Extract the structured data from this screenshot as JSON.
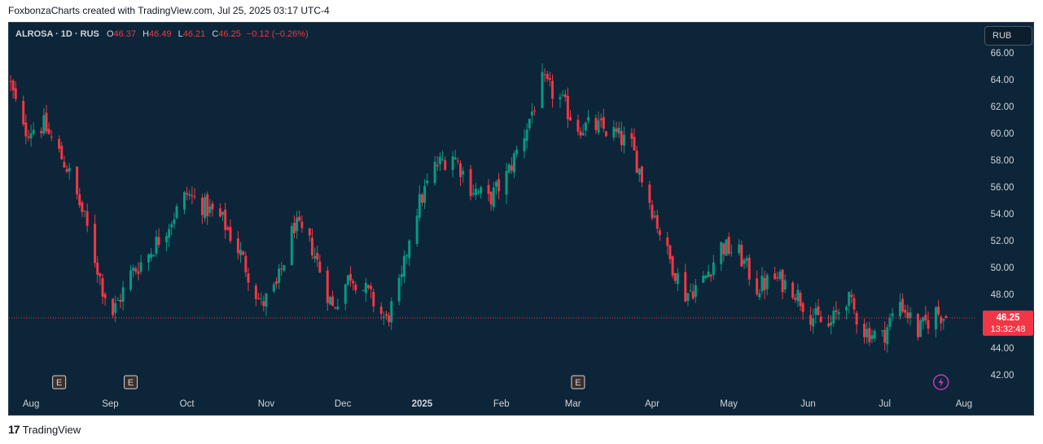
{
  "header": {
    "caption": "FoxbonzaCharts created with TradingView.com, Jul 25, 2025 03:17 UTC-4"
  },
  "legend": {
    "symbol": "ALROSA · 1D · RUS",
    "o_label": "O",
    "o_value": "46.37",
    "h_label": "H",
    "h_value": "46.49",
    "l_label": "L",
    "l_value": "46.21",
    "c_label": "C",
    "c_value": "46.25",
    "change": "−0.12 (−0.26%)"
  },
  "currency_button": "RUB",
  "price_badge": {
    "price": "46.25",
    "countdown": "13:32:48"
  },
  "footer": {
    "logo_text": "TradingView"
  },
  "colors": {
    "up": "#089981",
    "down": "#f23645",
    "background": "#0c2538",
    "axis_text": "#d1d4dc"
  },
  "chart_data": {
    "type": "candlestick",
    "y_ticks": [
      "66.00",
      "64.00",
      "62.00",
      "60.00",
      "58.00",
      "56.00",
      "54.00",
      "52.00",
      "50.00",
      "48.00",
      "46.00",
      "44.00",
      "42.00"
    ],
    "ylim": [
      41.5,
      66.5
    ],
    "x_labels": [
      "Aug",
      "Sep",
      "Oct",
      "Nov",
      "Dec",
      "2025",
      "Feb",
      "Mar",
      "Apr",
      "May",
      "Jun",
      "Jul",
      "Aug"
    ],
    "last_price": 46.25,
    "earnings_markers": [
      "E",
      "E",
      "E"
    ],
    "anchors": [
      {
        "date": "2024-07-24",
        "price": 63.6
      },
      {
        "date": "2024-07-29",
        "price": 60.2
      },
      {
        "date": "2024-08-06",
        "price": 60.6
      },
      {
        "date": "2024-08-15",
        "price": 57.5
      },
      {
        "date": "2024-08-22",
        "price": 53.6
      },
      {
        "date": "2024-08-29",
        "price": 48.5
      },
      {
        "date": "2024-09-02",
        "price": 46.6
      },
      {
        "date": "2024-09-09",
        "price": 49.5
      },
      {
        "date": "2024-09-16",
        "price": 51.0
      },
      {
        "date": "2024-09-23",
        "price": 53.0
      },
      {
        "date": "2024-10-01",
        "price": 55.5
      },
      {
        "date": "2024-10-08",
        "price": 54.5
      },
      {
        "date": "2024-10-15",
        "price": 53.5
      },
      {
        "date": "2024-10-22",
        "price": 51.0
      },
      {
        "date": "2024-10-30",
        "price": 47.2
      },
      {
        "date": "2024-11-05",
        "price": 48.5
      },
      {
        "date": "2024-11-12",
        "price": 53.2
      },
      {
        "date": "2024-11-19",
        "price": 51.5
      },
      {
        "date": "2024-11-27",
        "price": 47.0
      },
      {
        "date": "2024-12-04",
        "price": 49.5
      },
      {
        "date": "2024-12-11",
        "price": 48.0
      },
      {
        "date": "2024-12-18",
        "price": 46.0
      },
      {
        "date": "2024-12-24",
        "price": 49.0
      },
      {
        "date": "2024-12-28",
        "price": 53.5
      },
      {
        "date": "2025-01-06",
        "price": 57.5
      },
      {
        "date": "2025-01-13",
        "price": 58.5
      },
      {
        "date": "2025-01-20",
        "price": 56.0
      },
      {
        "date": "2025-01-27",
        "price": 55.0
      },
      {
        "date": "2025-02-03",
        "price": 56.8
      },
      {
        "date": "2025-02-10",
        "price": 60.0
      },
      {
        "date": "2025-02-17",
        "price": 63.8
      },
      {
        "date": "2025-02-24",
        "price": 62.5
      },
      {
        "date": "2025-03-03",
        "price": 60.5
      },
      {
        "date": "2025-03-10",
        "price": 60.5
      },
      {
        "date": "2025-03-17",
        "price": 60.0
      },
      {
        "date": "2025-03-24",
        "price": 59.0
      },
      {
        "date": "2025-03-31",
        "price": 55.0
      },
      {
        "date": "2025-04-07",
        "price": 51.0
      },
      {
        "date": "2025-04-14",
        "price": 48.0
      },
      {
        "date": "2025-04-21",
        "price": 49.0
      },
      {
        "date": "2025-04-28",
        "price": 51.6
      },
      {
        "date": "2025-05-05",
        "price": 51.0
      },
      {
        "date": "2025-05-12",
        "price": 48.5
      },
      {
        "date": "2025-05-19",
        "price": 49.2
      },
      {
        "date": "2025-05-26",
        "price": 48.5
      },
      {
        "date": "2025-06-02",
        "price": 46.5
      },
      {
        "date": "2025-06-09",
        "price": 45.5
      },
      {
        "date": "2025-06-16",
        "price": 47.8
      },
      {
        "date": "2025-06-23",
        "price": 45.3
      },
      {
        "date": "2025-06-30",
        "price": 44.8
      },
      {
        "date": "2025-07-07",
        "price": 47.5
      },
      {
        "date": "2025-07-14",
        "price": 45.2
      },
      {
        "date": "2025-07-21",
        "price": 46.7
      },
      {
        "date": "2025-07-25",
        "price": 46.25
      }
    ]
  }
}
